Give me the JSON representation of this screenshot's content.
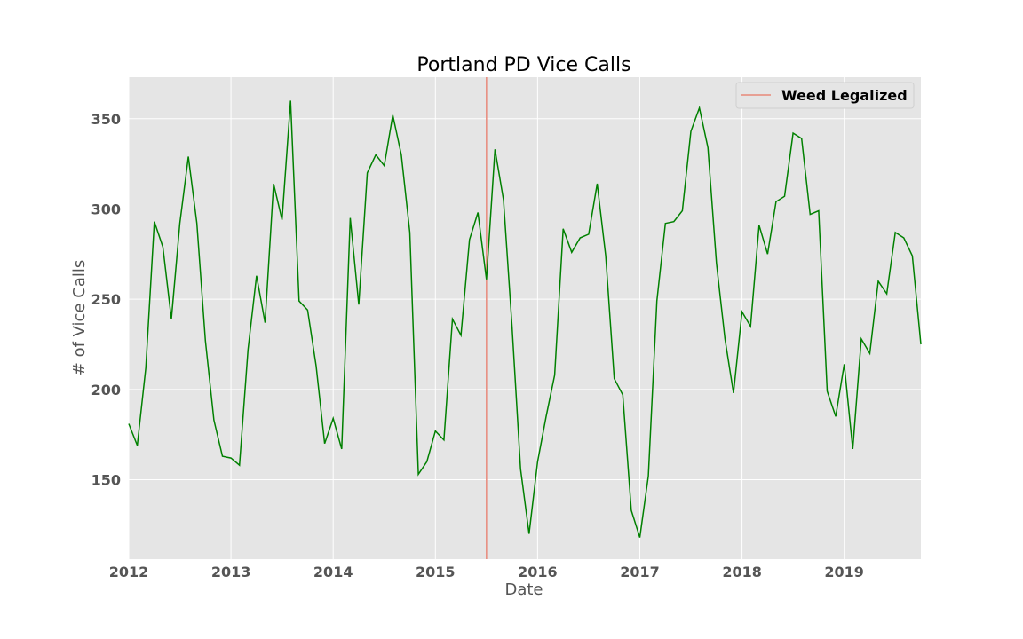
{
  "chart_data": {
    "type": "line",
    "title": "Portland PD Vice Calls",
    "xlabel": "Date",
    "ylabel": "# of Vice Calls",
    "xlim": [
      "2012-01",
      "2019-10"
    ],
    "ylim": [
      106,
      373
    ],
    "x_ticks": [
      "2012",
      "2013",
      "2014",
      "2015",
      "2016",
      "2017",
      "2018",
      "2019"
    ],
    "y_ticks": [
      150,
      200,
      250,
      300,
      350
    ],
    "grid": true,
    "legend_position": "top-right",
    "colors": {
      "line": "#008000",
      "vline": "#e8897a",
      "background": "#e5e5e5",
      "grid": "#ffffff"
    },
    "series": [
      {
        "x": [
          "2012-01",
          "2012-02",
          "2012-03",
          "2012-04",
          "2012-05",
          "2012-06",
          "2012-07",
          "2012-08",
          "2012-09",
          "2012-10",
          "2012-11",
          "2012-12",
          "2013-01",
          "2013-02",
          "2013-03",
          "2013-04",
          "2013-05",
          "2013-06",
          "2013-07",
          "2013-08",
          "2013-09",
          "2013-10",
          "2013-11",
          "2013-12",
          "2014-01",
          "2014-02",
          "2014-03",
          "2014-04",
          "2014-05",
          "2014-06",
          "2014-07",
          "2014-08",
          "2014-09",
          "2014-10",
          "2014-11",
          "2014-12",
          "2015-01",
          "2015-02",
          "2015-03",
          "2015-04",
          "2015-05",
          "2015-06",
          "2015-07",
          "2015-08",
          "2015-09",
          "2015-10",
          "2015-11",
          "2015-12",
          "2016-01",
          "2016-02",
          "2016-03",
          "2016-04",
          "2016-05",
          "2016-06",
          "2016-07",
          "2016-08",
          "2016-09",
          "2016-10",
          "2016-11",
          "2016-12",
          "2017-01",
          "2017-02",
          "2017-03",
          "2017-04",
          "2017-05",
          "2017-06",
          "2017-07",
          "2017-08",
          "2017-09",
          "2017-10",
          "2017-11",
          "2017-12",
          "2018-01",
          "2018-02",
          "2018-03",
          "2018-04",
          "2018-05",
          "2018-06",
          "2018-07",
          "2018-08",
          "2018-09",
          "2018-10",
          "2018-11",
          "2018-12",
          "2019-01",
          "2019-02",
          "2019-03",
          "2019-04",
          "2019-05",
          "2019-06",
          "2019-07",
          "2019-08",
          "2019-09",
          "2019-10"
        ],
        "values": [
          181,
          169,
          212,
          293,
          279,
          239,
          292,
          329,
          292,
          227,
          183,
          163,
          162,
          158,
          222,
          263,
          237,
          314,
          294,
          360,
          249,
          244,
          213,
          170,
          184,
          167,
          295,
          247,
          320,
          330,
          324,
          352,
          330,
          287,
          153,
          160,
          177,
          172,
          239,
          230,
          283,
          298,
          261,
          333,
          305,
          235,
          156,
          120,
          160,
          185,
          208,
          289,
          276,
          284,
          286,
          314,
          274,
          206,
          197,
          133,
          118,
          152,
          249,
          292,
          293,
          299,
          343,
          356,
          334,
          270,
          228,
          198,
          243,
          235,
          291,
          275,
          304,
          307,
          342,
          339,
          297,
          299,
          199,
          185,
          214,
          167,
          228,
          220,
          260,
          253,
          287,
          284,
          274,
          225
        ]
      }
    ],
    "annotations": [
      {
        "type": "vline",
        "x": "2015-07",
        "label": "Weed Legalized"
      }
    ]
  }
}
